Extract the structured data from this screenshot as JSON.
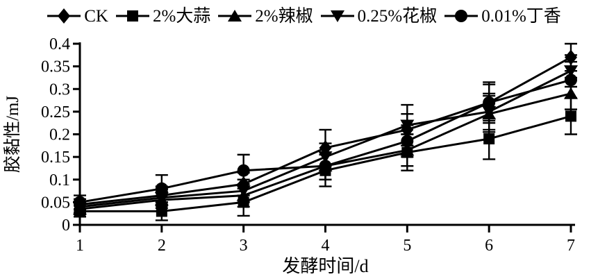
{
  "figure": {
    "background": "#ffffff",
    "ink_color": "#000000"
  },
  "chart_data": {
    "type": "line",
    "title": "",
    "xlabel": "发酵时间/d",
    "ylabel": "胶黏性/mJ",
    "x": [
      1,
      2,
      3,
      4,
      5,
      6,
      7
    ],
    "x_tick_labels": [
      "1",
      "2",
      "3",
      "4",
      "5",
      "6",
      "7"
    ],
    "xlim": [
      1,
      7
    ],
    "ylim": [
      0,
      0.4
    ],
    "y_ticks": [
      0,
      0.05,
      0.1,
      0.15,
      0.2,
      0.25,
      0.3,
      0.35,
      0.4
    ],
    "y_tick_labels": [
      "0",
      "0.05",
      "0.1",
      "0.15",
      "0.2",
      "0.25",
      "0.3",
      "0.35",
      "0.4"
    ],
    "grid": false,
    "legend_position": "top",
    "error_bars": true,
    "series": [
      {
        "name": "CK",
        "marker": "diamond",
        "values": [
          0.045,
          0.065,
          0.09,
          0.17,
          0.21,
          0.27,
          0.37
        ],
        "errors": [
          0.012,
          0.02,
          0.025,
          0.04,
          0.035,
          0.04,
          0.03
        ]
      },
      {
        "name": "2%大蒜",
        "marker": "square",
        "values": [
          0.03,
          0.03,
          0.05,
          0.12,
          0.16,
          0.19,
          0.24
        ],
        "errors": [
          0.012,
          0.02,
          0.03,
          0.035,
          0.04,
          0.045,
          0.04
        ]
      },
      {
        "name": "2%辣椒",
        "marker": "triangle-up",
        "values": [
          0.035,
          0.055,
          0.065,
          0.13,
          0.165,
          0.245,
          0.29
        ],
        "errors": [
          0.012,
          0.018,
          0.025,
          0.03,
          0.035,
          0.04,
          0.035
        ]
      },
      {
        "name": "0.25%花椒",
        "marker": "triangle-down",
        "values": [
          0.04,
          0.06,
          0.075,
          0.15,
          0.22,
          0.25,
          0.34
        ],
        "errors": [
          0.012,
          0.018,
          0.025,
          0.03,
          0.045,
          0.04,
          0.035
        ]
      },
      {
        "name": "0.01%丁香",
        "marker": "circle",
        "values": [
          0.05,
          0.08,
          0.12,
          0.13,
          0.185,
          0.27,
          0.32
        ],
        "errors": [
          0.015,
          0.03,
          0.035,
          0.03,
          0.035,
          0.045,
          0.04
        ]
      }
    ]
  }
}
